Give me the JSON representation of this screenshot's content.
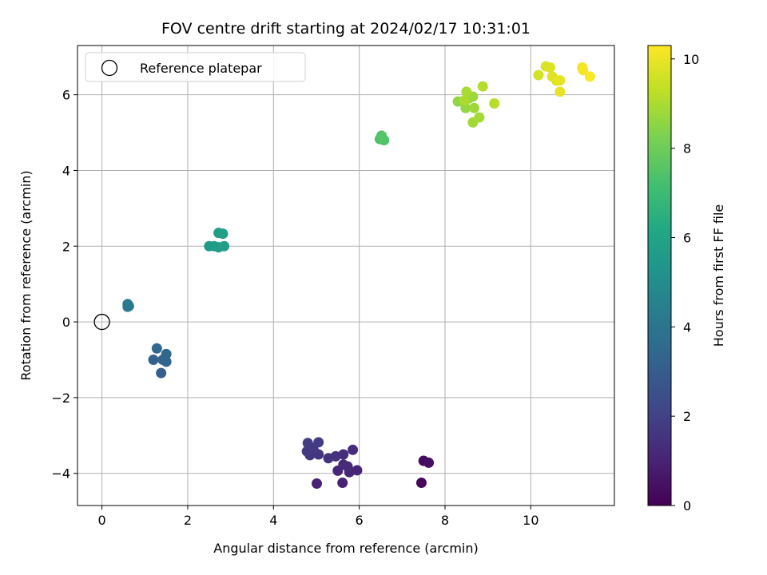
{
  "chart_data": {
    "type": "scatter",
    "title": "FOV centre drift starting at 2024/02/17 10:31:01",
    "xlabel": "Angular distance from reference (arcmin)",
    "ylabel": "Rotation from reference (arcmin)",
    "xlim": [
      -0.57,
      11.95
    ],
    "ylim": [
      -4.85,
      7.3
    ],
    "xticks": [
      0,
      2,
      4,
      6,
      8,
      10
    ],
    "yticks": [
      -4,
      -2,
      0,
      2,
      4,
      6
    ],
    "xtick_labels": [
      "0",
      "2",
      "4",
      "6",
      "8",
      "10"
    ],
    "ytick_labels": [
      "−4",
      "−2",
      "0",
      "2",
      "4",
      "6"
    ],
    "grid": true,
    "legend": {
      "placement": "top-left",
      "entries": [
        {
          "label": "Reference platepar",
          "marker": "open-circle"
        }
      ]
    },
    "reference_point": {
      "x": 0,
      "y": 0
    },
    "colorbar": {
      "label": "Hours from first FF file",
      "colormap": "viridis",
      "range": [
        0,
        10.3
      ],
      "ticks": [
        0,
        2,
        4,
        6,
        8,
        10
      ],
      "tick_labels": [
        "0",
        "2",
        "4",
        "6",
        "8",
        "10"
      ]
    },
    "points": [
      {
        "x": 7.45,
        "y": -4.25,
        "c": 0.2
      },
      {
        "x": 7.5,
        "y": -3.67,
        "c": 0.3
      },
      {
        "x": 7.62,
        "y": -3.72,
        "c": 0.4
      },
      {
        "x": 5.01,
        "y": -4.27,
        "c": 1.0
      },
      {
        "x": 5.61,
        "y": -4.25,
        "c": 1.0
      },
      {
        "x": 5.5,
        "y": -3.93,
        "c": 1.1
      },
      {
        "x": 5.77,
        "y": -3.97,
        "c": 1.15
      },
      {
        "x": 5.95,
        "y": -3.92,
        "c": 1.1
      },
      {
        "x": 5.63,
        "y": -3.77,
        "c": 1.2
      },
      {
        "x": 5.73,
        "y": -3.82,
        "c": 1.25
      },
      {
        "x": 5.85,
        "y": -3.38,
        "c": 1.3
      },
      {
        "x": 5.63,
        "y": -3.5,
        "c": 1.4
      },
      {
        "x": 5.45,
        "y": -3.55,
        "c": 1.45
      },
      {
        "x": 5.28,
        "y": -3.6,
        "c": 1.5
      },
      {
        "x": 5.05,
        "y": -3.5,
        "c": 1.55
      },
      {
        "x": 4.95,
        "y": -3.42,
        "c": 1.6
      },
      {
        "x": 4.85,
        "y": -3.52,
        "c": 1.65
      },
      {
        "x": 4.78,
        "y": -3.42,
        "c": 1.7
      },
      {
        "x": 4.92,
        "y": -3.33,
        "c": 1.75
      },
      {
        "x": 4.8,
        "y": -3.2,
        "c": 1.8
      },
      {
        "x": 5.05,
        "y": -3.18,
        "c": 1.85
      },
      {
        "x": 1.38,
        "y": -1.35,
        "c": 3.1
      },
      {
        "x": 1.2,
        "y": -1.0,
        "c": 3.2
      },
      {
        "x": 1.42,
        "y": -1.0,
        "c": 3.3
      },
      {
        "x": 1.5,
        "y": -1.05,
        "c": 3.35
      },
      {
        "x": 1.5,
        "y": -0.85,
        "c": 3.4
      },
      {
        "x": 1.28,
        "y": -0.7,
        "c": 3.45
      },
      {
        "x": 0.6,
        "y": 0.4,
        "c": 4.1
      },
      {
        "x": 0.63,
        "y": 0.42,
        "c": 4.15
      },
      {
        "x": 0.6,
        "y": 0.47,
        "c": 4.2
      },
      {
        "x": 2.5,
        "y": 2.0,
        "c": 5.5
      },
      {
        "x": 2.62,
        "y": 2.0,
        "c": 5.6
      },
      {
        "x": 2.72,
        "y": 1.97,
        "c": 5.65
      },
      {
        "x": 2.85,
        "y": 2.0,
        "c": 5.7
      },
      {
        "x": 2.72,
        "y": 2.35,
        "c": 5.75
      },
      {
        "x": 2.82,
        "y": 2.33,
        "c": 5.8
      },
      {
        "x": 6.48,
        "y": 4.83,
        "c": 7.4
      },
      {
        "x": 6.58,
        "y": 4.8,
        "c": 7.45
      },
      {
        "x": 6.52,
        "y": 4.92,
        "c": 7.5
      },
      {
        "x": 8.3,
        "y": 5.82,
        "c": 8.6
      },
      {
        "x": 8.48,
        "y": 5.65,
        "c": 8.65
      },
      {
        "x": 8.55,
        "y": 5.9,
        "c": 8.7
      },
      {
        "x": 8.65,
        "y": 5.95,
        "c": 8.75
      },
      {
        "x": 8.68,
        "y": 5.65,
        "c": 8.8
      },
      {
        "x": 8.65,
        "y": 5.27,
        "c": 8.85
      },
      {
        "x": 8.8,
        "y": 5.4,
        "c": 8.9
      },
      {
        "x": 8.5,
        "y": 6.08,
        "c": 8.95
      },
      {
        "x": 8.45,
        "y": 5.85,
        "c": 9.0
      },
      {
        "x": 8.88,
        "y": 6.22,
        "c": 9.1
      },
      {
        "x": 9.15,
        "y": 5.77,
        "c": 9.2
      },
      {
        "x": 10.18,
        "y": 6.52,
        "c": 9.6
      },
      {
        "x": 10.35,
        "y": 6.75,
        "c": 9.7
      },
      {
        "x": 10.45,
        "y": 6.72,
        "c": 9.75
      },
      {
        "x": 10.5,
        "y": 6.48,
        "c": 9.8
      },
      {
        "x": 10.6,
        "y": 6.37,
        "c": 9.85
      },
      {
        "x": 10.68,
        "y": 6.38,
        "c": 9.9
      },
      {
        "x": 10.68,
        "y": 6.08,
        "c": 9.95
      },
      {
        "x": 11.2,
        "y": 6.72,
        "c": 10.1
      },
      {
        "x": 11.22,
        "y": 6.65,
        "c": 10.15
      },
      {
        "x": 11.38,
        "y": 6.48,
        "c": 10.25
      }
    ]
  }
}
